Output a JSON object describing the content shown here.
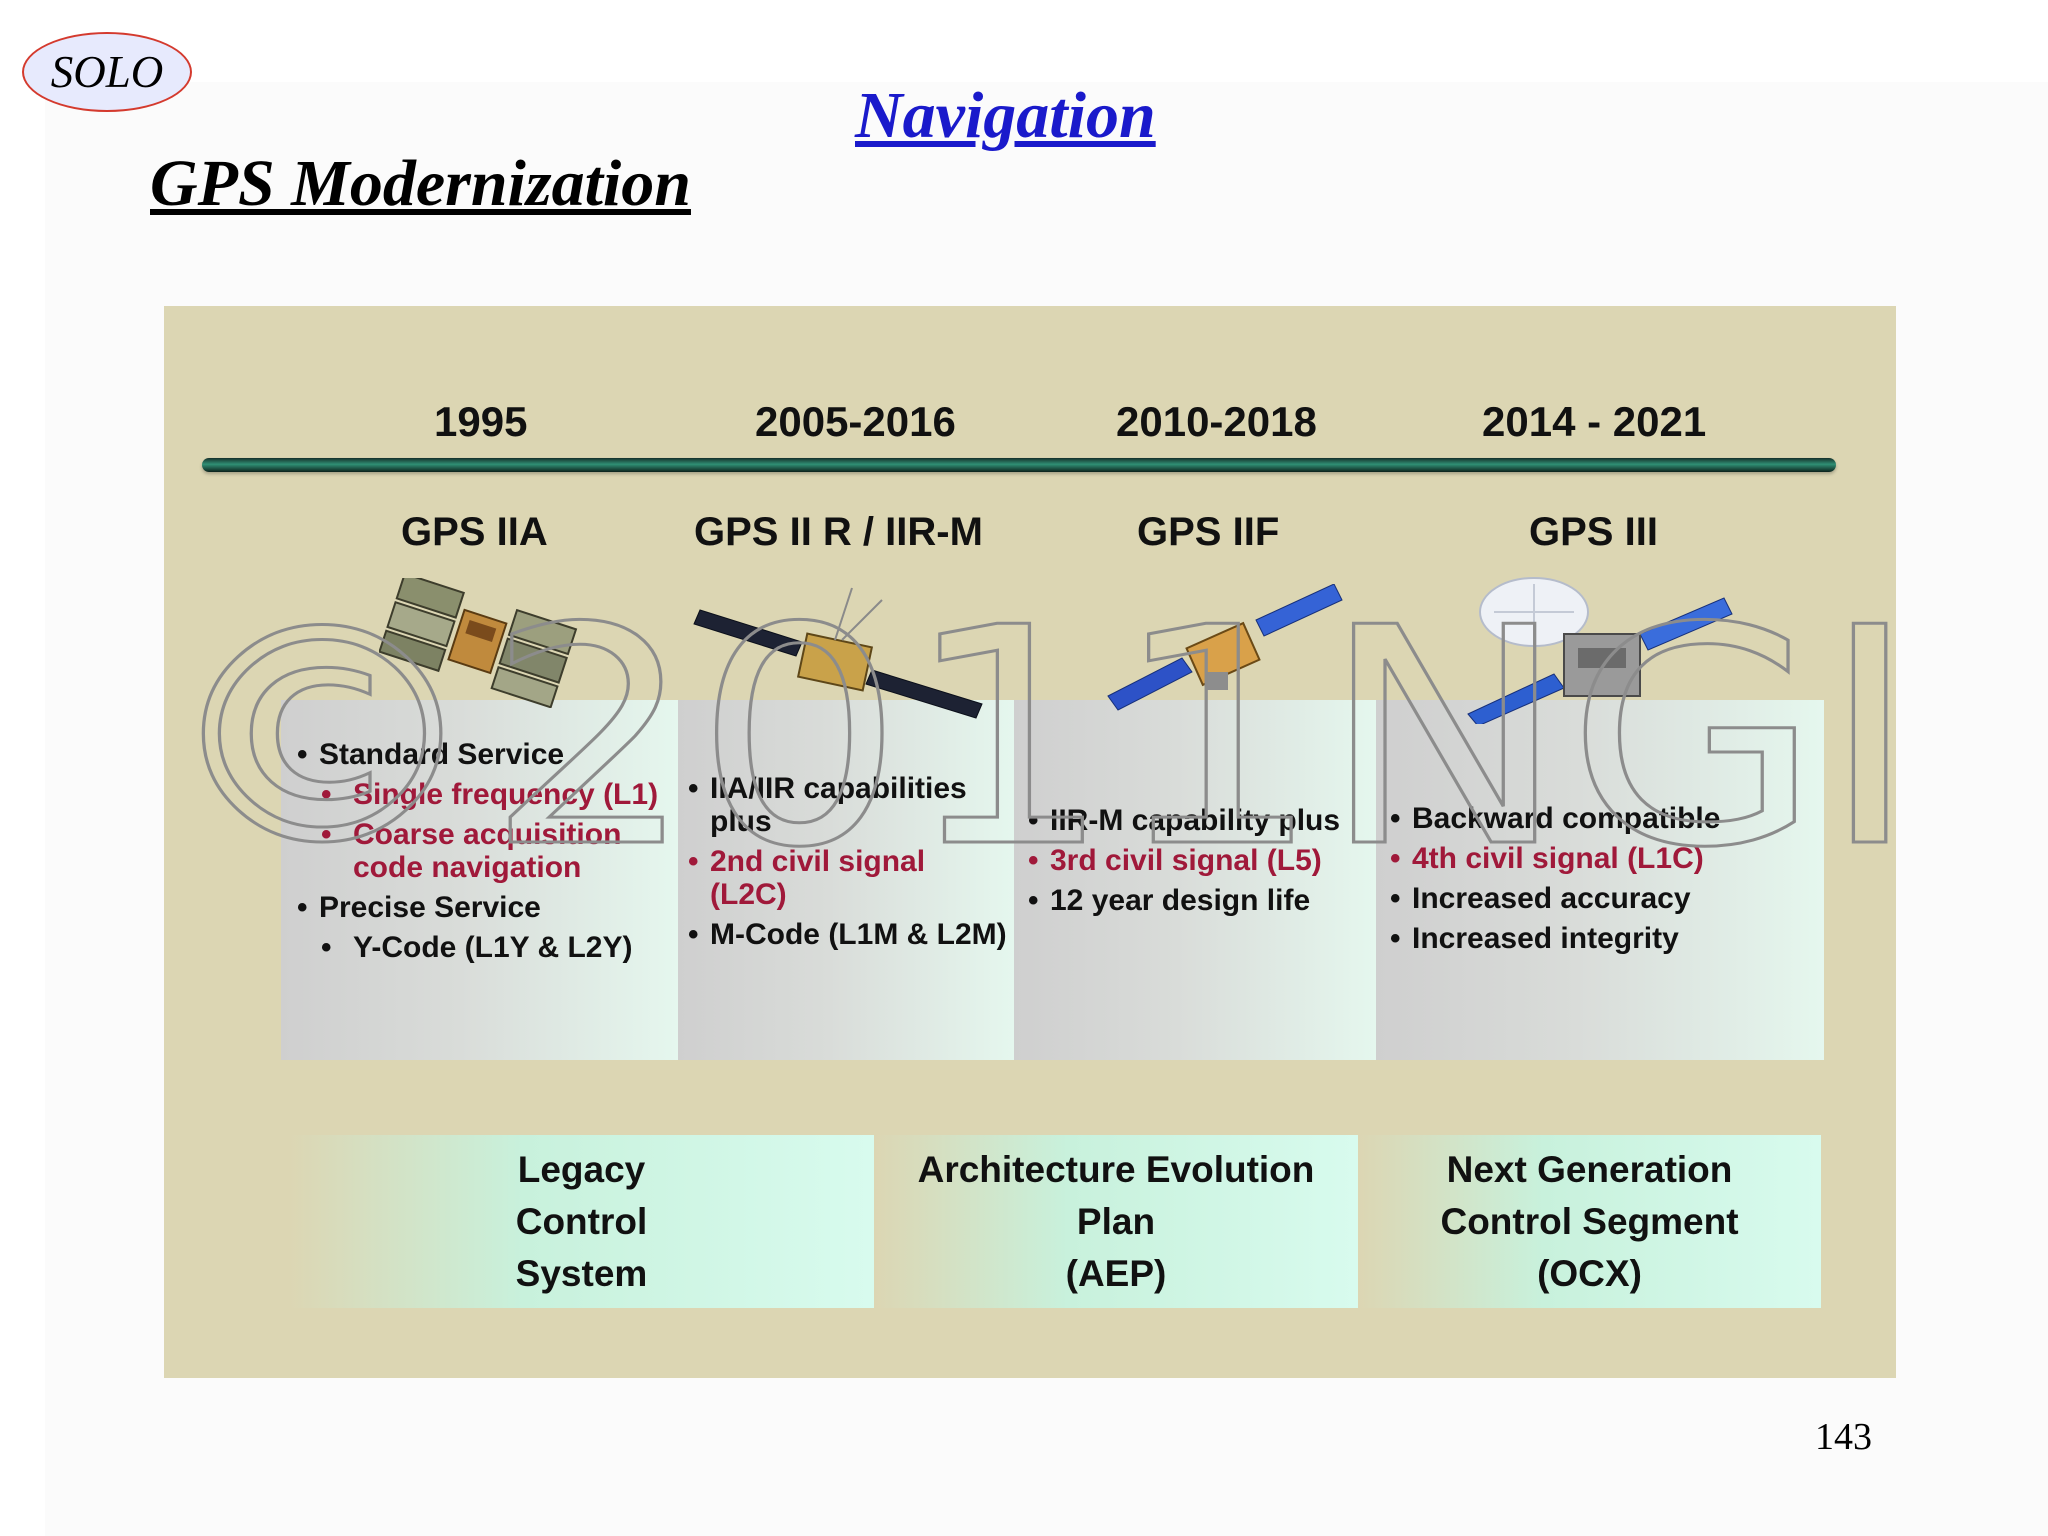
{
  "header": {
    "logo_text": "SOLO",
    "section_title": "Navigation",
    "slide_title": "GPS Modernization",
    "page_number": "143"
  },
  "watermark": {
    "text": "©2011NGI"
  },
  "timeline": {
    "periods": [
      {
        "years": "1995",
        "generation": "GPS IIA"
      },
      {
        "years": "2005-2016",
        "generation": "GPS II R / IIR-M"
      },
      {
        "years": "2010-2018",
        "generation": "GPS IIF"
      },
      {
        "years": "2014 - 2021",
        "generation": "GPS III"
      }
    ]
  },
  "capabilities": [
    {
      "items": [
        {
          "text": "Standard Service",
          "level": 0,
          "highlight": false
        },
        {
          "text": "Single frequency (L1)",
          "level": 1,
          "highlight": true
        },
        {
          "text": "Coarse acquisition code navigation",
          "level": 1,
          "highlight": true
        },
        {
          "text": "Precise Service",
          "level": 0,
          "highlight": false
        },
        {
          "text": "Y-Code (L1Y & L2Y)",
          "level": 1,
          "highlight": false
        }
      ]
    },
    {
      "items": [
        {
          "text": "IIA/IIR capabilities plus",
          "level": 0,
          "highlight": false
        },
        {
          "text": "2nd civil signal (L2C)",
          "level": 0,
          "highlight": true
        },
        {
          "text": "M-Code (L1M & L2M)",
          "level": 0,
          "highlight": false
        }
      ]
    },
    {
      "items": [
        {
          "text": "IIR-M capability plus",
          "level": 0,
          "highlight": false
        },
        {
          "text": "3rd civil signal (L5)",
          "level": 0,
          "highlight": true
        },
        {
          "text": "12 year design life",
          "level": 0,
          "highlight": false
        }
      ]
    },
    {
      "items": [
        {
          "text": "Backward compatible",
          "level": 0,
          "highlight": false
        },
        {
          "text": "4th civil signal (L1C)",
          "level": 0,
          "highlight": true
        },
        {
          "text": "Increased accuracy",
          "level": 0,
          "highlight": false
        },
        {
          "text": "Increased integrity",
          "level": 0,
          "highlight": false
        }
      ]
    }
  ],
  "control_segments": [
    {
      "lines": [
        "Legacy",
        "Control",
        "System"
      ]
    },
    {
      "lines": [
        "Architecture Evolution",
        "Plan",
        "(AEP)"
      ]
    },
    {
      "lines": [
        "Next Generation",
        "Control Segment",
        "(OCX)"
      ]
    }
  ],
  "colors": {
    "panel_background": "#dcd6b3",
    "section_title": "#1a1acb",
    "highlight_text": "#a0193a",
    "timeline_bar": "#2f8f74",
    "control_box": "#c8f1dc"
  }
}
